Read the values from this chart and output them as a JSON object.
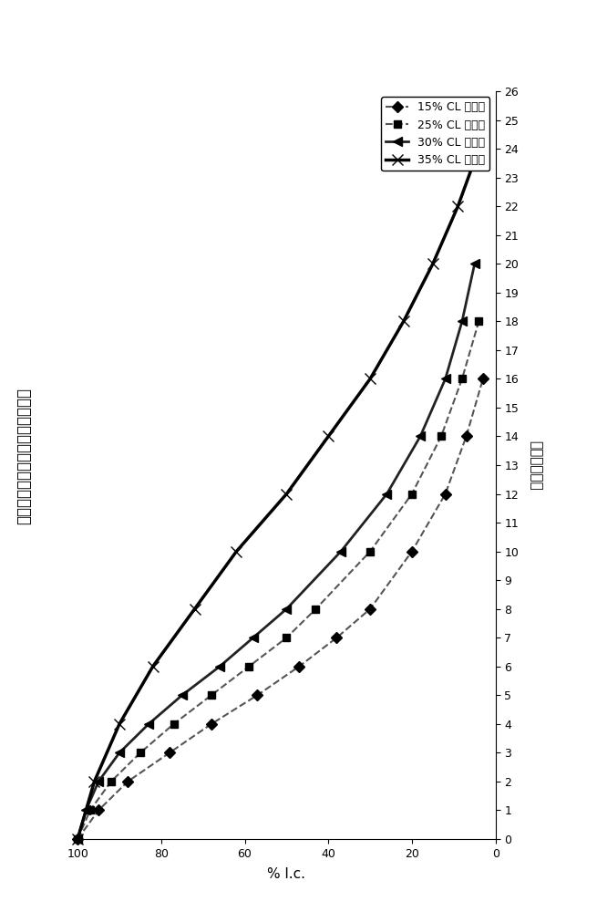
{
  "title": "包衣挤出物的苯乙酸根的溶出分布",
  "xlabel_bottom": "% l.c.",
  "ylabel_right": "时间（小时）",
  "xlim": [
    0,
    100
  ],
  "ylim": [
    0,
    26
  ],
  "series": [
    {
      "label": "15% CL 挤出物",
      "time": [
        0,
        1,
        2,
        3,
        4,
        5,
        6,
        7,
        8,
        10,
        12,
        14,
        16
      ],
      "lc": [
        100,
        95,
        88,
        78,
        68,
        57,
        47,
        38,
        30,
        20,
        12,
        7,
        3
      ],
      "color": "#555555",
      "linestyle": "--",
      "marker": "D",
      "linewidth": 1.5,
      "markersize": 6
    },
    {
      "label": "25% CL 挤出物",
      "time": [
        0,
        1,
        2,
        3,
        4,
        5,
        6,
        7,
        8,
        10,
        12,
        14,
        16,
        18
      ],
      "lc": [
        100,
        97,
        92,
        85,
        77,
        68,
        59,
        50,
        43,
        30,
        20,
        13,
        8,
        4
      ],
      "color": "#555555",
      "linestyle": "--",
      "marker": "s",
      "linewidth": 1.5,
      "markersize": 6
    },
    {
      "label": "30% CL 挤出物",
      "time": [
        0,
        1,
        2,
        3,
        4,
        5,
        6,
        7,
        8,
        10,
        12,
        14,
        16,
        18,
        20
      ],
      "lc": [
        100,
        98,
        95,
        90,
        83,
        75,
        66,
        58,
        50,
        37,
        26,
        18,
        12,
        8,
        5
      ],
      "color": "#222222",
      "linestyle": "-",
      "marker": "<",
      "linewidth": 2.0,
      "markersize": 7
    },
    {
      "label": "35% CL 挤出物",
      "time": [
        0,
        2,
        4,
        6,
        8,
        10,
        12,
        14,
        16,
        18,
        20,
        22,
        24
      ],
      "lc": [
        100,
        96,
        90,
        82,
        72,
        62,
        50,
        40,
        30,
        22,
        15,
        9,
        4
      ],
      "color": "#000000",
      "linestyle": "-",
      "marker": "x",
      "linewidth": 2.5,
      "markersize": 9
    }
  ],
  "xticks": [
    0,
    20,
    40,
    60,
    80,
    100
  ],
  "yticks": [
    0,
    1,
    2,
    3,
    4,
    5,
    6,
    7,
    8,
    9,
    10,
    11,
    12,
    13,
    14,
    15,
    16,
    17,
    18,
    19,
    20,
    21,
    22,
    23,
    24,
    25,
    26
  ],
  "tick_fontsize": 9,
  "label_fontsize": 11,
  "title_fontsize": 12,
  "background_color": "#ffffff"
}
